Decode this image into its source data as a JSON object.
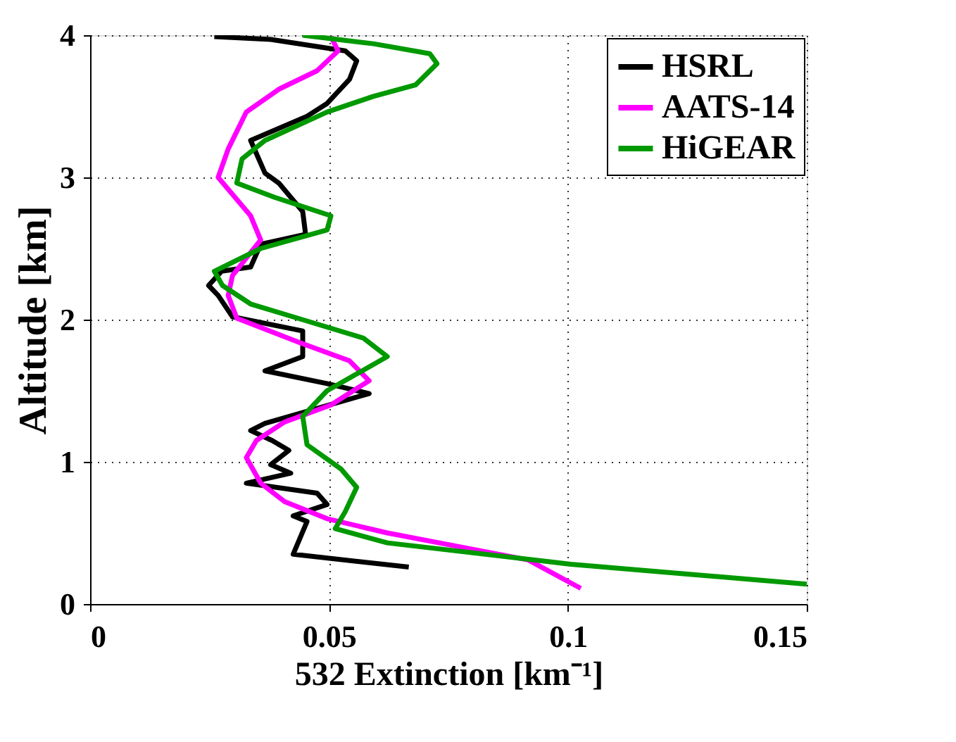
{
  "chart_data": {
    "type": "line",
    "xlabel": "532 Extinction [km⁻¹]",
    "ylabel": "Altitude [km]",
    "xlim": [
      0,
      0.15
    ],
    "ylim": [
      0,
      4
    ],
    "xticks": [
      0,
      0.05,
      0.1,
      0.15
    ],
    "yticks": [
      0,
      1,
      2,
      3,
      4
    ],
    "grid": true,
    "legend": "top right",
    "line_style": "solid",
    "marker": "none",
    "series": [
      {
        "name": "HSRL",
        "color": "#000000",
        "x": [
          0.0667,
          0.0425,
          0.0454,
          0.0425,
          0.0496,
          0.0475,
          0.0327,
          0.042,
          0.0378,
          0.0416,
          0.0381,
          0.0336,
          0.0366,
          0.0584,
          0.0496,
          0.0366,
          0.0445,
          0.0445,
          0.0298,
          0.0268,
          0.0248,
          0.0275,
          0.0336,
          0.0357,
          0.0451,
          0.0445,
          0.0395,
          0.0366,
          0.0336,
          0.0454,
          0.0496,
          0.0543,
          0.0558,
          0.0534,
          0.0378,
          0.026
        ],
        "values": [
          0.26,
          0.35,
          0.58,
          0.62,
          0.7,
          0.78,
          0.85,
          0.92,
          0.98,
          1.08,
          1.15,
          1.22,
          1.27,
          1.48,
          1.55,
          1.64,
          1.74,
          1.92,
          2.02,
          2.17,
          2.24,
          2.34,
          2.37,
          2.53,
          2.6,
          2.76,
          2.96,
          3.03,
          3.26,
          3.43,
          3.52,
          3.69,
          3.82,
          3.89,
          3.97,
          3.99
        ]
      },
      {
        "name": "AATS-14",
        "color": "#ff00ff",
        "x": [
          0.1027,
          0.0917,
          0.0622,
          0.0496,
          0.0407,
          0.0357,
          0.0327,
          0.0348,
          0.0407,
          0.0504,
          0.0584,
          0.0543,
          0.0437,
          0.0307,
          0.0289,
          0.0298,
          0.0357,
          0.0336,
          0.0268,
          0.0289,
          0.0327,
          0.0395,
          0.0475,
          0.0519,
          0.0504
        ],
        "values": [
          0.11,
          0.31,
          0.5,
          0.6,
          0.72,
          0.85,
          1.03,
          1.15,
          1.28,
          1.4,
          1.57,
          1.71,
          1.84,
          2.01,
          2.17,
          2.31,
          2.56,
          2.73,
          3.0,
          3.2,
          3.46,
          3.62,
          3.75,
          3.89,
          3.99
        ]
      },
      {
        "name": "HiGEAR",
        "color": "#009900",
        "x": [
          0.15,
          0.1006,
          0.0622,
          0.0513,
          0.0534,
          0.0558,
          0.0525,
          0.0454,
          0.0445,
          0.0496,
          0.0622,
          0.0572,
          0.0454,
          0.0336,
          0.0277,
          0.026,
          0.0357,
          0.0496,
          0.0504,
          0.0386,
          0.0307,
          0.0318,
          0.0366,
          0.0496,
          0.0593,
          0.0681,
          0.0726,
          0.0711,
          0.0593,
          0.0445
        ],
        "values": [
          0.14,
          0.28,
          0.43,
          0.53,
          0.65,
          0.82,
          0.95,
          1.12,
          1.32,
          1.5,
          1.74,
          1.87,
          1.99,
          2.11,
          2.24,
          2.34,
          2.5,
          2.63,
          2.73,
          2.86,
          2.96,
          3.13,
          3.26,
          3.46,
          3.57,
          3.65,
          3.8,
          3.87,
          3.94,
          4.0
        ]
      }
    ]
  }
}
